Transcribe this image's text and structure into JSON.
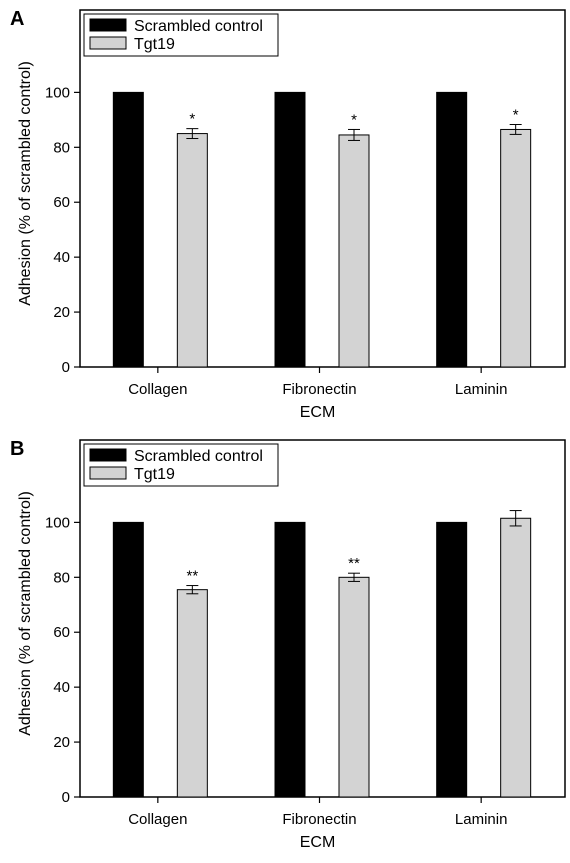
{
  "chart_data": [
    {
      "type": "bar",
      "panel_label": "A",
      "xlabel": "ECM",
      "ylabel": "Adhesion (% of scrambled control)",
      "categories": [
        "Collagen",
        "Fibronectin",
        "Laminin"
      ],
      "ylim": [
        0,
        130
      ],
      "yticks": [
        0,
        20,
        40,
        60,
        80,
        100
      ],
      "legend_position": "top-left",
      "grid": false,
      "series": [
        {
          "name": "Scrambled control",
          "color": "#000000",
          "values": [
            100,
            100,
            100
          ],
          "errors": [
            0,
            0,
            0
          ],
          "annotations": [
            "",
            "",
            ""
          ]
        },
        {
          "name": "Tgt19",
          "color": "#d3d3d3",
          "values": [
            85,
            84.5,
            86.5
          ],
          "errors": [
            1.8,
            2,
            1.8
          ],
          "annotations": [
            "*",
            "*",
            "*"
          ]
        }
      ]
    },
    {
      "type": "bar",
      "panel_label": "B",
      "xlabel": "ECM",
      "ylabel": "Adhesion (% of scrambled control)",
      "categories": [
        "Collagen",
        "Fibronectin",
        "Laminin"
      ],
      "ylim": [
        0,
        130
      ],
      "yticks": [
        0,
        20,
        40,
        60,
        80,
        100
      ],
      "legend_position": "top-left",
      "grid": false,
      "series": [
        {
          "name": "Scrambled control",
          "color": "#000000",
          "values": [
            100,
            100,
            100
          ],
          "errors": [
            0,
            0,
            0
          ],
          "annotations": [
            "",
            "",
            ""
          ]
        },
        {
          "name": "Tgt19",
          "color": "#d3d3d3",
          "values": [
            75.5,
            80,
            101.5
          ],
          "errors": [
            1.5,
            1.5,
            2.8
          ],
          "annotations": [
            "**",
            "**",
            ""
          ]
        }
      ]
    }
  ]
}
